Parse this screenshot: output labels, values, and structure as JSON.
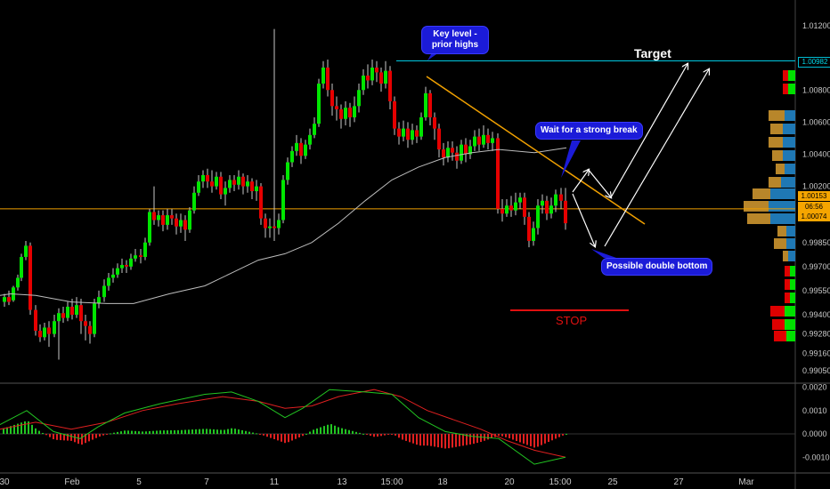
{
  "chart_data": [
    {
      "type": "candlestick",
      "title": "",
      "yaxis": {
        "ticks": [
          "1.01200",
          "1.00800",
          "1.00600",
          "1.00400",
          "1.00200",
          "0.99850",
          "0.99700",
          "0.99550",
          "0.99400",
          "0.99280",
          "0.99160",
          "0.99050"
        ],
        "range": [
          0.9899,
          1.0135
        ]
      },
      "xaxis": {
        "ticks": [
          "30",
          "Feb",
          "5",
          "7",
          "11",
          "13",
          "15:00",
          "18",
          "20",
          "15:00",
          "25",
          "27",
          "Mar"
        ]
      },
      "price_labels": {
        "key_level": "1.00982",
        "upper": "1.00153",
        "timer": "06:56",
        "current": "1.00074"
      },
      "key_level": 1.00982,
      "horizontal_level": 1.0006,
      "moving_average": [
        [
          0,
          0.9952
        ],
        [
          12,
          0.9953
        ],
        [
          40,
          0.9952
        ],
        [
          80,
          0.9948
        ],
        [
          120,
          0.9947
        ],
        [
          150,
          0.9947
        ],
        [
          190,
          0.9953
        ],
        [
          230,
          0.9958
        ],
        [
          260,
          0.9966
        ],
        [
          290,
          0.9974
        ],
        [
          320,
          0.9978
        ],
        [
          350,
          0.9985
        ],
        [
          380,
          0.9997
        ],
        [
          410,
          1.0011
        ],
        [
          440,
          1.0024
        ],
        [
          470,
          1.0032
        ],
        [
          500,
          1.0038
        ],
        [
          530,
          1.0041
        ],
        [
          560,
          1.0043
        ],
        [
          600,
          1.0041
        ],
        [
          636,
          1.0044
        ]
      ],
      "annotations": [
        {
          "text": "Key level - prior highs"
        },
        {
          "text": "Wait for a strong break"
        },
        {
          "text": "Possible double bottom"
        },
        {
          "text": "Target"
        },
        {
          "text": "STOP"
        }
      ],
      "colors": {
        "up": "#00e600",
        "down": "#e60000",
        "ma": "#bdbdbd",
        "trendline": "#f0a000",
        "key_level": "#00bcd4",
        "stop": "#e01010"
      }
    },
    {
      "type": "macd",
      "yaxis": {
        "ticks": [
          "0.0020",
          "0.0010",
          "0.0000",
          "-0.0010"
        ],
        "range": [
          -0.0016,
          0.0021
        ]
      },
      "macd_line": [
        [
          0,
          0.0004
        ],
        [
          30,
          0.001
        ],
        [
          60,
          0.0001
        ],
        [
          90,
          -0.0002
        ],
        [
          110,
          0.0003
        ],
        [
          140,
          0.0009
        ],
        [
          180,
          0.0013
        ],
        [
          230,
          0.0017
        ],
        [
          260,
          0.0018
        ],
        [
          290,
          0.0014
        ],
        [
          320,
          0.0007
        ],
        [
          340,
          0.0011
        ],
        [
          370,
          0.0019
        ],
        [
          410,
          0.0018
        ],
        [
          440,
          0.0017
        ],
        [
          470,
          0.0007
        ],
        [
          500,
          0.0001
        ],
        [
          530,
          -0.0001
        ],
        [
          560,
          -0.0002
        ],
        [
          600,
          -0.0013
        ],
        [
          635,
          -0.001
        ]
      ],
      "signal_line": [
        [
          0,
          0.0002
        ],
        [
          40,
          0.0005
        ],
        [
          80,
          0.0002
        ],
        [
          120,
          0.0005
        ],
        [
          160,
          0.001
        ],
        [
          200,
          0.0013
        ],
        [
          250,
          0.0016
        ],
        [
          290,
          0.0014
        ],
        [
          320,
          0.0011
        ],
        [
          350,
          0.0012
        ],
        [
          380,
          0.0016
        ],
        [
          420,
          0.0019
        ],
        [
          450,
          0.0016
        ],
        [
          480,
          0.001
        ],
        [
          510,
          0.0006
        ],
        [
          540,
          0.0002
        ],
        [
          570,
          -0.0003
        ],
        [
          600,
          -0.0007
        ],
        [
          635,
          -0.001
        ]
      ],
      "colors": {
        "macd": "#22c522",
        "signal": "#e02020",
        "hist_pos": "#22c522",
        "hist_neg": "#e02020"
      }
    }
  ]
}
